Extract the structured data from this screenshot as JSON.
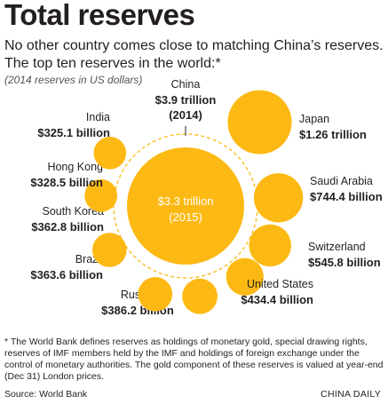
{
  "chart_data": {
    "type": "bubble",
    "title": "Total reserves",
    "subtitle": "No other country comes close to matching China’s reserves. The top ten reserves in the world:*",
    "note": "(2014 reserves in US dollars)",
    "center": {
      "name": "China",
      "value_2014_label": "$3.9 trillion",
      "year_2014_label": "(2014)",
      "value_2014": 3900,
      "value_2015_label": "$3.3 trillion",
      "year_2015_label": "(2015)",
      "value_2015": 3300
    },
    "series": [
      {
        "name": "Japan",
        "label": "$1.26 trillion",
        "value": 1260
      },
      {
        "name": "Saudi Arabia",
        "label": "$744.4 billion",
        "value": 744.4
      },
      {
        "name": "Switzerland",
        "label": "$545.8 billion",
        "value": 545.8
      },
      {
        "name": "United States",
        "label": "$434.4 billion",
        "value": 434.4
      },
      {
        "name": "Russia",
        "label": "$386.2 billion",
        "value": 386.2
      },
      {
        "name": "Brazil",
        "label": "$363.6 billion",
        "value": 363.6
      },
      {
        "name": "South Korea",
        "label": "$362.8 billion",
        "value": 362.8
      },
      {
        "name": "Hong Kong",
        "label": "$328.5 billion",
        "value": 328.5
      },
      {
        "name": "India",
        "label": "$325.1 billion",
        "value": 325.1
      }
    ],
    "units": "billion US dollars",
    "colors": {
      "bubble": "#fdb913",
      "ring": "#fdb913",
      "text_on_bubble": "#ffffff"
    }
  },
  "footnote": "* The World Bank defines reserves as holdings of monetary gold, special drawing rights, reserves of IMF members held by the IMF and holdings of foreign exchange under the control of monetary authorities. The gold component of these reserves is valued at year-end (Dec 31) London prices.",
  "source": "Source: World Bank",
  "credit": "CHINA DAILY"
}
